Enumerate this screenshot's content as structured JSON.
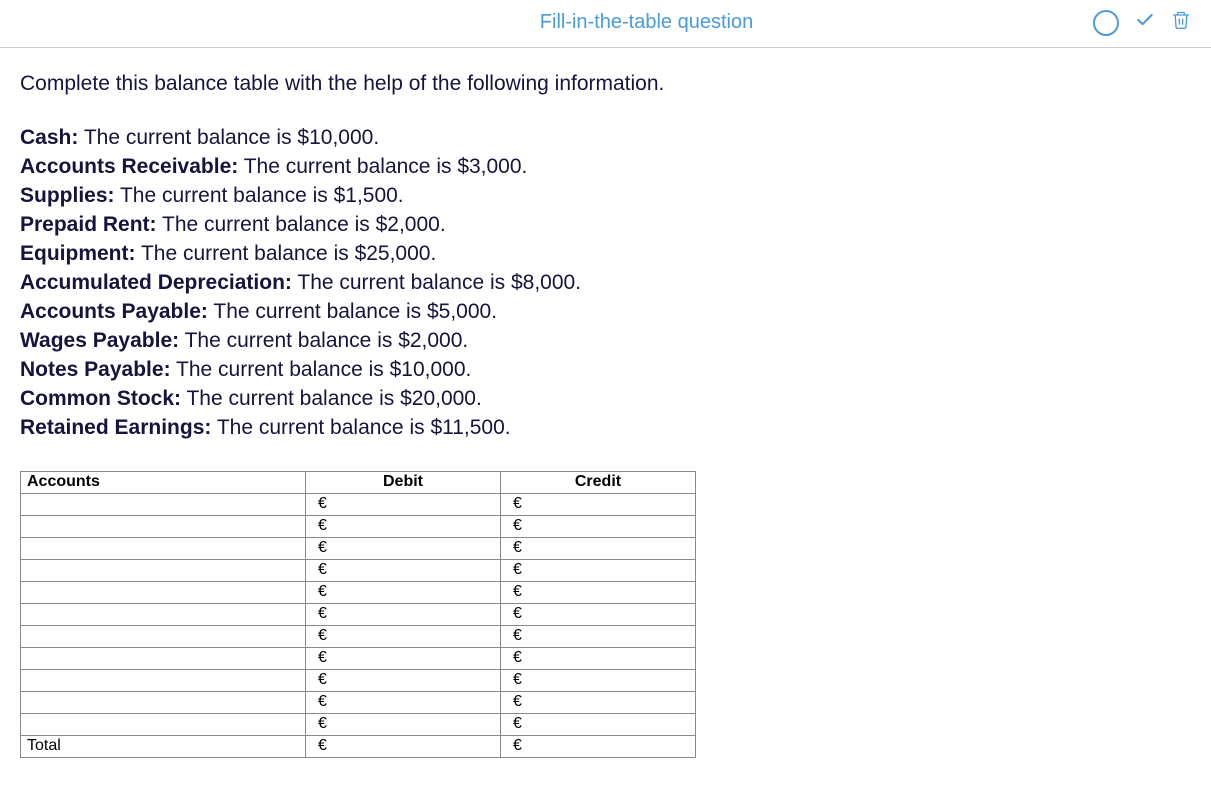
{
  "header": {
    "title": "Fill-in-the-table question"
  },
  "instruction": "Complete this balance table with the help of the following information.",
  "info_items": [
    {
      "label": "Cash:",
      "text": " The current balance is $10,000."
    },
    {
      "label": "Accounts Receivable:",
      "text": " The current balance is $3,000."
    },
    {
      "label": "Supplies:",
      "text": " The current balance is $1,500."
    },
    {
      "label": "Prepaid Rent:",
      "text": " The current balance is $2,000."
    },
    {
      "label": "Equipment:",
      "text": " The current balance is $25,000."
    },
    {
      "label": "Accumulated Depreciation:",
      "text": " The current balance is $8,000."
    },
    {
      "label": "Accounts Payable:",
      "text": " The current balance is $5,000."
    },
    {
      "label": "Wages Payable:",
      "text": " The current balance is $2,000."
    },
    {
      "label": "Notes Payable:",
      "text": " The current balance is $10,000."
    },
    {
      "label": "Common Stock:",
      "text": " The current balance is $20,000."
    },
    {
      "label": "Retained Earnings:",
      "text": " The current balance is $11,500."
    }
  ],
  "table": {
    "currency_symbol": "€",
    "columns": {
      "accounts": "Accounts",
      "debit": "Debit",
      "credit": "Credit"
    },
    "rows": [
      {
        "account": "",
        "debit": "",
        "credit": ""
      },
      {
        "account": "",
        "debit": "",
        "credit": ""
      },
      {
        "account": "",
        "debit": "",
        "credit": ""
      },
      {
        "account": "",
        "debit": "",
        "credit": ""
      },
      {
        "account": "",
        "debit": "",
        "credit": ""
      },
      {
        "account": "",
        "debit": "",
        "credit": ""
      },
      {
        "account": "",
        "debit": "",
        "credit": ""
      },
      {
        "account": "",
        "debit": "",
        "credit": ""
      },
      {
        "account": "",
        "debit": "",
        "credit": ""
      },
      {
        "account": "",
        "debit": "",
        "credit": ""
      },
      {
        "account": "",
        "debit": "",
        "credit": ""
      }
    ],
    "total_label": "Total",
    "total": {
      "debit": "",
      "credit": ""
    }
  },
  "colors": {
    "accent": "#4a9bd8",
    "text_dark": "#14143c",
    "border": "#888888"
  }
}
